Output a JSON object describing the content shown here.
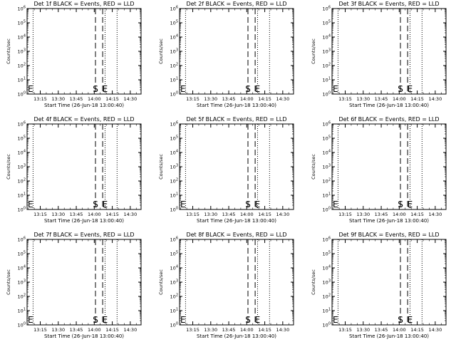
{
  "chart_data": [
    {
      "type": "line",
      "title": "Det 1f BLACK = Events, RED = LLD",
      "xlabel": "Start Time (26-Jun-18 13:00:40)",
      "ylabel": "Counts/sec",
      "xlim": [
        "13:04",
        "14:39"
      ],
      "x_scale": "time",
      "ylim": [
        1,
        1000000
      ],
      "y_scale": "log",
      "x_ticks": [
        "13:15",
        "13:30",
        "13:45",
        "14:00",
        "14:15",
        "14:30"
      ],
      "y_ticks": [
        "10^0",
        "10^1",
        "10^2",
        "10^3",
        "10^4",
        "10^5",
        "10^6"
      ],
      "series": [],
      "dotted_lines_x": [
        "13:09",
        "14:09",
        "14:19"
      ],
      "dashed_lines_x": [
        "14:01",
        "14:07"
      ],
      "markers": [
        {
          "label": "S",
          "x": "14:01"
        },
        {
          "label": "E",
          "x": "14:09"
        },
        {
          "label": "E",
          "x": "13:04"
        }
      ]
    },
    {
      "type": "line",
      "title": "Det 2f BLACK = Events, RED = LLD",
      "xlabel": "Start Time (26-Jun-18 13:00:40)",
      "ylabel": "Counts/sec",
      "xlim": [
        "13:04",
        "14:39"
      ],
      "x_scale": "time",
      "ylim": [
        1,
        1000000
      ],
      "y_scale": "log",
      "x_ticks": [
        "13:15",
        "13:30",
        "13:45",
        "14:00",
        "14:15",
        "14:30"
      ],
      "y_ticks": [
        "10^0",
        "10^1",
        "10^2",
        "10^3",
        "10^4",
        "10^5",
        "10^6"
      ],
      "series": [],
      "dotted_lines_x": [
        "13:09",
        "14:09",
        "14:19"
      ],
      "dashed_lines_x": [
        "14:01",
        "14:07"
      ],
      "markers": [
        {
          "label": "S",
          "x": "14:01"
        },
        {
          "label": "E",
          "x": "14:09"
        },
        {
          "label": "E",
          "x": "13:04"
        }
      ]
    },
    {
      "type": "line",
      "title": "Det 3f BLACK = Events, RED = LLD",
      "xlabel": "Start Time (26-Jun-18 13:00:40)",
      "ylabel": "Counts/sec",
      "xlim": [
        "13:04",
        "14:39"
      ],
      "x_scale": "time",
      "ylim": [
        1,
        1000000
      ],
      "y_scale": "log",
      "x_ticks": [
        "13:15",
        "13:30",
        "13:45",
        "14:00",
        "14:15",
        "14:30"
      ],
      "y_ticks": [
        "10^0",
        "10^1",
        "10^2",
        "10^3",
        "10^4",
        "10^5",
        "10^6"
      ],
      "series": [],
      "dotted_lines_x": [
        "13:09",
        "14:09",
        "14:19"
      ],
      "dashed_lines_x": [
        "14:01",
        "14:07"
      ],
      "markers": [
        {
          "label": "S",
          "x": "14:01"
        },
        {
          "label": "E",
          "x": "14:09"
        },
        {
          "label": "E",
          "x": "13:04"
        }
      ]
    },
    {
      "type": "line",
      "title": "Det 4f BLACK = Events, RED = LLD",
      "xlabel": "Start Time (26-Jun-18 13:00:40)",
      "ylabel": "Counts/sec",
      "xlim": [
        "13:04",
        "14:39"
      ],
      "x_scale": "time",
      "ylim": [
        1,
        1000000
      ],
      "y_scale": "log",
      "x_ticks": [
        "13:15",
        "13:30",
        "13:45",
        "14:00",
        "14:15",
        "14:30"
      ],
      "y_ticks": [
        "10^0",
        "10^1",
        "10^2",
        "10^3",
        "10^4",
        "10^5",
        "10^6"
      ],
      "series": [],
      "dotted_lines_x": [
        "13:09",
        "14:09",
        "14:19"
      ],
      "dashed_lines_x": [
        "14:01",
        "14:07"
      ],
      "markers": [
        {
          "label": "S",
          "x": "14:01"
        },
        {
          "label": "E",
          "x": "14:09"
        },
        {
          "label": "E",
          "x": "13:04"
        }
      ]
    },
    {
      "type": "line",
      "title": "Det 5f BLACK = Events, RED = LLD",
      "xlabel": "Start Time (26-Jun-18 13:00:40)",
      "ylabel": "Counts/sec",
      "xlim": [
        "13:04",
        "14:39"
      ],
      "x_scale": "time",
      "ylim": [
        1,
        1000000
      ],
      "y_scale": "log",
      "x_ticks": [
        "13:15",
        "13:30",
        "13:45",
        "14:00",
        "14:15",
        "14:30"
      ],
      "y_ticks": [
        "10^0",
        "10^1",
        "10^2",
        "10^3",
        "10^4",
        "10^5",
        "10^6"
      ],
      "series": [],
      "dotted_lines_x": [
        "13:09",
        "14:09",
        "14:19"
      ],
      "dashed_lines_x": [
        "14:01",
        "14:07"
      ],
      "markers": [
        {
          "label": "S",
          "x": "14:01"
        },
        {
          "label": "E",
          "x": "14:09"
        },
        {
          "label": "E",
          "x": "13:04"
        }
      ]
    },
    {
      "type": "line",
      "title": "Det 6f BLACK = Events, RED = LLD",
      "xlabel": "Start Time (26-Jun-18 13:00:40)",
      "ylabel": "Counts/sec",
      "xlim": [
        "13:04",
        "14:39"
      ],
      "x_scale": "time",
      "ylim": [
        1,
        1000000
      ],
      "y_scale": "log",
      "x_ticks": [
        "13:15",
        "13:30",
        "13:45",
        "14:00",
        "14:15",
        "14:30"
      ],
      "y_ticks": [
        "10^0",
        "10^1",
        "10^2",
        "10^3",
        "10^4",
        "10^5",
        "10^6"
      ],
      "series": [],
      "dotted_lines_x": [
        "13:09",
        "14:09",
        "14:19"
      ],
      "dashed_lines_x": [
        "14:01",
        "14:07"
      ],
      "markers": [
        {
          "label": "S",
          "x": "14:01"
        },
        {
          "label": "E",
          "x": "14:09"
        },
        {
          "label": "E",
          "x": "13:04"
        }
      ]
    },
    {
      "type": "line",
      "title": "Det 7f BLACK = Events, RED = LLD",
      "xlabel": "Start Time (26-Jun-18 13:00:40)",
      "ylabel": "Counts/sec",
      "xlim": [
        "13:04",
        "14:39"
      ],
      "x_scale": "time",
      "ylim": [
        1,
        1000000
      ],
      "y_scale": "log",
      "x_ticks": [
        "13:15",
        "13:30",
        "13:45",
        "14:00",
        "14:15",
        "14:30"
      ],
      "y_ticks": [
        "10^0",
        "10^1",
        "10^2",
        "10^3",
        "10^4",
        "10^5",
        "10^6"
      ],
      "series": [],
      "dotted_lines_x": [
        "13:09",
        "14:09",
        "14:19"
      ],
      "dashed_lines_x": [
        "14:01",
        "14:07"
      ],
      "markers": [
        {
          "label": "S",
          "x": "14:01"
        },
        {
          "label": "E",
          "x": "14:09"
        },
        {
          "label": "E",
          "x": "13:04"
        }
      ]
    },
    {
      "type": "line",
      "title": "Det 8f BLACK = Events, RED = LLD",
      "xlabel": "Start Time (26-Jun-18 13:00:40)",
      "ylabel": "Counts/sec",
      "xlim": [
        "13:04",
        "14:39"
      ],
      "x_scale": "time",
      "ylim": [
        1,
        1000000
      ],
      "y_scale": "log",
      "x_ticks": [
        "13:15",
        "13:30",
        "13:45",
        "14:00",
        "14:15",
        "14:30"
      ],
      "y_ticks": [
        "10^0",
        "10^1",
        "10^2",
        "10^3",
        "10^4",
        "10^5",
        "10^6"
      ],
      "series": [],
      "dotted_lines_x": [
        "13:09",
        "14:09",
        "14:19"
      ],
      "dashed_lines_x": [
        "14:01",
        "14:07"
      ],
      "markers": [
        {
          "label": "S",
          "x": "14:01"
        },
        {
          "label": "E",
          "x": "14:09"
        },
        {
          "label": "E",
          "x": "13:04"
        }
      ]
    },
    {
      "type": "line",
      "title": "Det 9f BLACK = Events, RED = LLD",
      "xlabel": "Start Time (26-Jun-18 13:00:40)",
      "ylabel": "Counts/sec",
      "xlim": [
        "13:04",
        "14:39"
      ],
      "x_scale": "time",
      "ylim": [
        1,
        1000000
      ],
      "y_scale": "log",
      "x_ticks": [
        "13:15",
        "13:30",
        "13:45",
        "14:00",
        "14:15",
        "14:30"
      ],
      "y_ticks": [
        "10^0",
        "10^1",
        "10^2",
        "10^3",
        "10^4",
        "10^5",
        "10^6"
      ],
      "series": [],
      "dotted_lines_x": [
        "13:09",
        "14:09",
        "14:19"
      ],
      "dashed_lines_x": [
        "14:01",
        "14:07"
      ],
      "markers": [
        {
          "label": "S",
          "x": "14:01"
        },
        {
          "label": "E",
          "x": "14:09"
        },
        {
          "label": "E",
          "x": "13:04"
        }
      ]
    }
  ],
  "colors": {
    "background": "#ffffff",
    "foreground": "#000000",
    "events_series": "#000000",
    "lld_series": "#ff0000"
  }
}
